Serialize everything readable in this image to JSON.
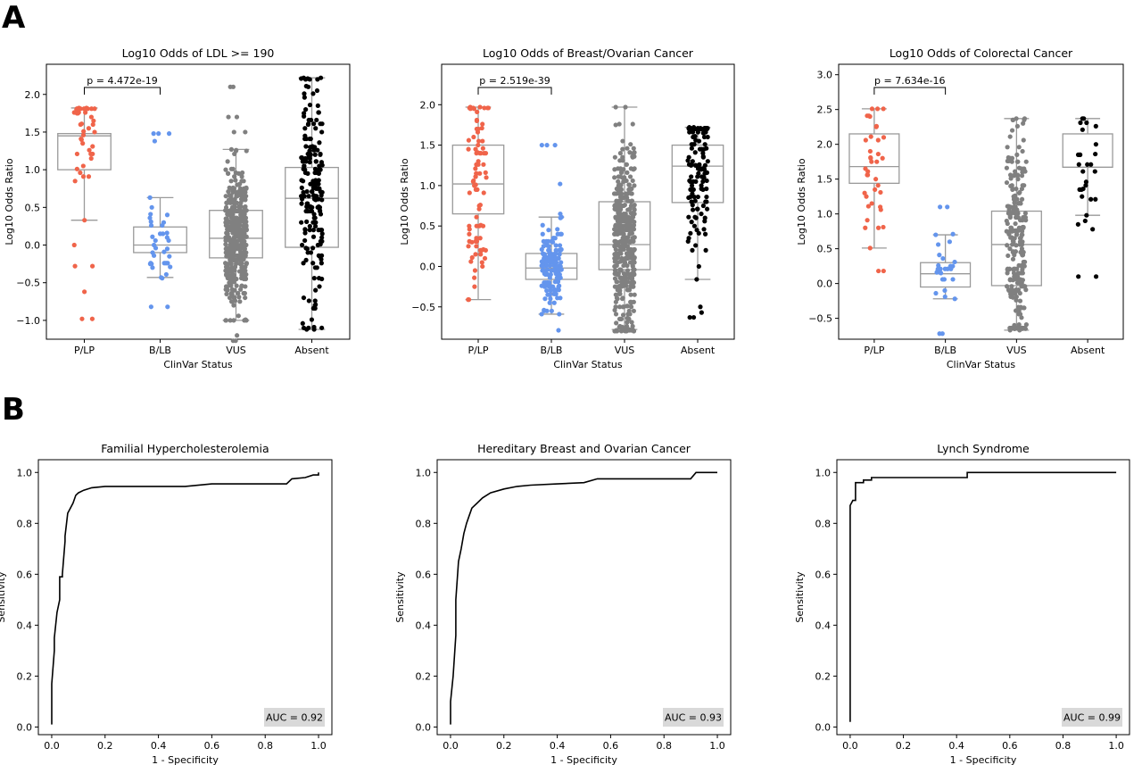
{
  "panels": {
    "A": "A",
    "B": "B"
  },
  "chart_data": [
    {
      "type": "box_strip",
      "title": "Log10 Odds of LDL >= 190",
      "xlabel": "ClinVar Status",
      "ylabel": "Log10 Odds Ratio",
      "categories": [
        "P/LP",
        "B/LB",
        "VUS",
        "Absent"
      ],
      "colors": [
        "#f0644a",
        "#6495ed",
        "#808080",
        "#000000"
      ],
      "ylim": [
        -1.25,
        2.4
      ],
      "yticks": [
        -1.0,
        -0.5,
        0.0,
        0.5,
        1.0,
        1.5,
        2.0
      ],
      "ytick_labels": [
        "−1.0",
        "−0.5",
        "0.0",
        "0.5",
        "1.0",
        "1.5",
        "2.0"
      ],
      "boxes": [
        {
          "whislo": 0.33,
          "q1": 1.0,
          "med": 1.45,
          "q3": 1.48,
          "whishi": 1.82
        },
        {
          "whislo": -0.43,
          "q1": -0.1,
          "med": 0.0,
          "q3": 0.24,
          "whishi": 0.63
        },
        {
          "whislo": -1.0,
          "q1": -0.17,
          "med": 0.09,
          "q3": 0.46,
          "whishi": 1.27
        },
        {
          "whislo": -1.12,
          "q1": -0.03,
          "med": 0.62,
          "q3": 1.03,
          "whishi": 2.22
        }
      ],
      "points": [
        {
          "n": 45,
          "min": -0.98,
          "max": 1.82,
          "outliers": [
            -0.98,
            -0.62,
            -0.28,
            -0.28,
            0.0
          ]
        },
        {
          "n": 40,
          "min": -0.82,
          "max": 1.48,
          "outliers": [
            1.48,
            1.48,
            1.38,
            -0.82
          ]
        },
        {
          "n": 420,
          "min": -1.27,
          "max": 2.1,
          "outliers": [
            1.7,
            1.7,
            1.5,
            1.5,
            2.1,
            -1.2,
            -1.27
          ]
        },
        {
          "n": 200,
          "min": -1.12,
          "max": 2.22,
          "outliers": []
        }
      ],
      "annotation": "p = 4.472e-19",
      "bracket": [
        "P/LP",
        "B/LB"
      ]
    },
    {
      "type": "box_strip",
      "title": "Log10 Odds of Breast/Ovarian Cancer",
      "xlabel": "ClinVar Status",
      "ylabel": "Log10 Odds Ratio",
      "categories": [
        "P/LP",
        "B/LB",
        "VUS",
        "Absent"
      ],
      "colors": [
        "#f0644a",
        "#6495ed",
        "#808080",
        "#000000"
      ],
      "ylim": [
        -0.9,
        2.5
      ],
      "yticks": [
        -0.5,
        0.0,
        0.5,
        1.0,
        1.5,
        2.0
      ],
      "ytick_labels": [
        "−0.5",
        "0.0",
        "0.5",
        "1.0",
        "1.5",
        "2.0"
      ],
      "boxes": [
        {
          "whislo": -0.41,
          "q1": 0.65,
          "med": 1.02,
          "q3": 1.5,
          "whishi": 1.97
        },
        {
          "whislo": -0.59,
          "q1": -0.16,
          "med": -0.02,
          "q3": 0.16,
          "whishi": 0.61
        },
        {
          "whislo": -0.78,
          "q1": -0.04,
          "med": 0.27,
          "q3": 0.8,
          "whishi": 1.97
        },
        {
          "whislo": -0.16,
          "q1": 0.79,
          "med": 1.24,
          "q3": 1.5,
          "whishi": 1.72
        }
      ],
      "points": [
        {
          "n": 90,
          "min": -0.41,
          "max": 1.97,
          "outliers": []
        },
        {
          "n": 160,
          "min": -0.79,
          "max": 1.5,
          "outliers": [
            1.5,
            1.5,
            1.02,
            0.65
          ]
        },
        {
          "n": 450,
          "min": -0.78,
          "max": 1.97,
          "outliers": []
        },
        {
          "n": 130,
          "min": -0.63,
          "max": 1.72,
          "outliers": [
            -0.5,
            -0.57,
            -0.63
          ]
        }
      ],
      "annotation": "p = 2.519e-39",
      "bracket": [
        "P/LP",
        "B/LB"
      ]
    },
    {
      "type": "box_strip",
      "title": "Log10 Odds of Colorectal Cancer",
      "xlabel": "ClinVar Status",
      "ylabel": "Log10 Odds Ratio",
      "categories": [
        "P/LP",
        "B/LB",
        "VUS",
        "Absent"
      ],
      "colors": [
        "#f0644a",
        "#6495ed",
        "#808080",
        "#000000"
      ],
      "ylim": [
        -0.8,
        3.15
      ],
      "yticks": [
        -0.5,
        0.0,
        0.5,
        1.0,
        1.5,
        2.0,
        2.5,
        3.0
      ],
      "ytick_labels": [
        "−0.5",
        "0.0",
        "0.5",
        "1.0",
        "1.5",
        "2.0",
        "2.5",
        "3.0"
      ],
      "boxes": [
        {
          "whislo": 0.51,
          "q1": 1.44,
          "med": 1.68,
          "q3": 2.15,
          "whishi": 2.51
        },
        {
          "whislo": -0.22,
          "q1": -0.05,
          "med": 0.14,
          "q3": 0.3,
          "whishi": 0.7
        },
        {
          "whislo": -0.67,
          "q1": -0.03,
          "med": 0.56,
          "q3": 1.04,
          "whishi": 2.37
        },
        {
          "whislo": 0.98,
          "q1": 1.67,
          "med": 1.67,
          "q3": 2.15,
          "whishi": 2.37
        }
      ],
      "points": [
        {
          "n": 40,
          "min": 0.18,
          "max": 2.51,
          "outliers": [
            0.18
          ]
        },
        {
          "n": 30,
          "min": -0.72,
          "max": 1.1,
          "outliers": [
            1.1,
            -0.72
          ]
        },
        {
          "n": 250,
          "min": -0.67,
          "max": 2.37,
          "outliers": []
        },
        {
          "n": 30,
          "min": 0.1,
          "max": 2.37,
          "outliers": [
            0.1,
            0.78,
            0.85,
            0.9
          ]
        }
      ],
      "annotation": "p = 7.634e-16",
      "bracket": [
        "P/LP",
        "B/LB"
      ]
    },
    {
      "type": "line",
      "title": "Familial Hypercholesterolemia",
      "xlabel": "1 - Specificity",
      "ylabel": "Sensitivity",
      "xlim": [
        -0.05,
        1.05
      ],
      "ylim": [
        -0.03,
        1.05
      ],
      "xticks": [
        0.0,
        0.2,
        0.4,
        0.6,
        0.8,
        1.0
      ],
      "xtick_labels": [
        "0.0",
        "0.2",
        "0.4",
        "0.6",
        "0.8",
        "1.0"
      ],
      "yticks": [
        0.0,
        0.2,
        0.4,
        0.6,
        0.8,
        1.0
      ],
      "ytick_labels": [
        "0.0",
        "0.2",
        "0.4",
        "0.6",
        "0.8",
        "1.0"
      ],
      "x": [
        0.0,
        0.0,
        0.01,
        0.01,
        0.02,
        0.03,
        0.03,
        0.04,
        0.04,
        0.05,
        0.05,
        0.06,
        0.07,
        0.08,
        0.09,
        0.1,
        0.12,
        0.15,
        0.2,
        0.5,
        0.6,
        0.88,
        0.9,
        0.95,
        0.98,
        1.0,
        1.0
      ],
      "y": [
        0.01,
        0.17,
        0.3,
        0.35,
        0.45,
        0.5,
        0.59,
        0.59,
        0.6,
        0.73,
        0.75,
        0.84,
        0.86,
        0.88,
        0.91,
        0.92,
        0.93,
        0.94,
        0.945,
        0.945,
        0.955,
        0.955,
        0.975,
        0.98,
        0.99,
        0.99,
        1.0
      ],
      "auc": "AUC = 0.92"
    },
    {
      "type": "line",
      "title": "Hereditary Breast and Ovarian Cancer",
      "xlabel": "1 - Specificity",
      "ylabel": "Sensitivity",
      "xlim": [
        -0.05,
        1.05
      ],
      "ylim": [
        -0.03,
        1.05
      ],
      "xticks": [
        0.0,
        0.2,
        0.4,
        0.6,
        0.8,
        1.0
      ],
      "xtick_labels": [
        "0.0",
        "0.2",
        "0.4",
        "0.6",
        "0.8",
        "1.0"
      ],
      "yticks": [
        0.0,
        0.2,
        0.4,
        0.6,
        0.8,
        1.0
      ],
      "ytick_labels": [
        "0.0",
        "0.2",
        "0.4",
        "0.6",
        "0.8",
        "1.0"
      ],
      "x": [
        0.0,
        0.0,
        0.01,
        0.02,
        0.02,
        0.03,
        0.04,
        0.05,
        0.06,
        0.07,
        0.08,
        0.1,
        0.12,
        0.15,
        0.2,
        0.25,
        0.3,
        0.4,
        0.5,
        0.55,
        0.6,
        0.9,
        0.92,
        1.0
      ],
      "y": [
        0.01,
        0.1,
        0.2,
        0.36,
        0.5,
        0.65,
        0.7,
        0.76,
        0.8,
        0.83,
        0.86,
        0.88,
        0.9,
        0.92,
        0.935,
        0.945,
        0.95,
        0.955,
        0.96,
        0.975,
        0.975,
        0.975,
        1.0,
        1.0
      ],
      "auc": "AUC = 0.93"
    },
    {
      "type": "line",
      "title": "Lynch Syndrome",
      "xlabel": "1 - Specificity",
      "ylabel": "Sensitivity",
      "xlim": [
        -0.05,
        1.05
      ],
      "ylim": [
        -0.03,
        1.05
      ],
      "xticks": [
        0.0,
        0.2,
        0.4,
        0.6,
        0.8,
        1.0
      ],
      "xtick_labels": [
        "0.0",
        "0.2",
        "0.4",
        "0.6",
        "0.8",
        "1.0"
      ],
      "yticks": [
        0.0,
        0.2,
        0.4,
        0.6,
        0.8,
        1.0
      ],
      "ytick_labels": [
        "0.0",
        "0.2",
        "0.4",
        "0.6",
        "0.8",
        "1.0"
      ],
      "x": [
        0.0,
        0.0,
        0.01,
        0.02,
        0.02,
        0.05,
        0.05,
        0.08,
        0.08,
        0.44,
        0.44,
        1.0
      ],
      "y": [
        0.02,
        0.87,
        0.89,
        0.89,
        0.96,
        0.96,
        0.97,
        0.97,
        0.98,
        0.98,
        1.0,
        1.0
      ],
      "auc": "AUC = 0.99"
    }
  ]
}
